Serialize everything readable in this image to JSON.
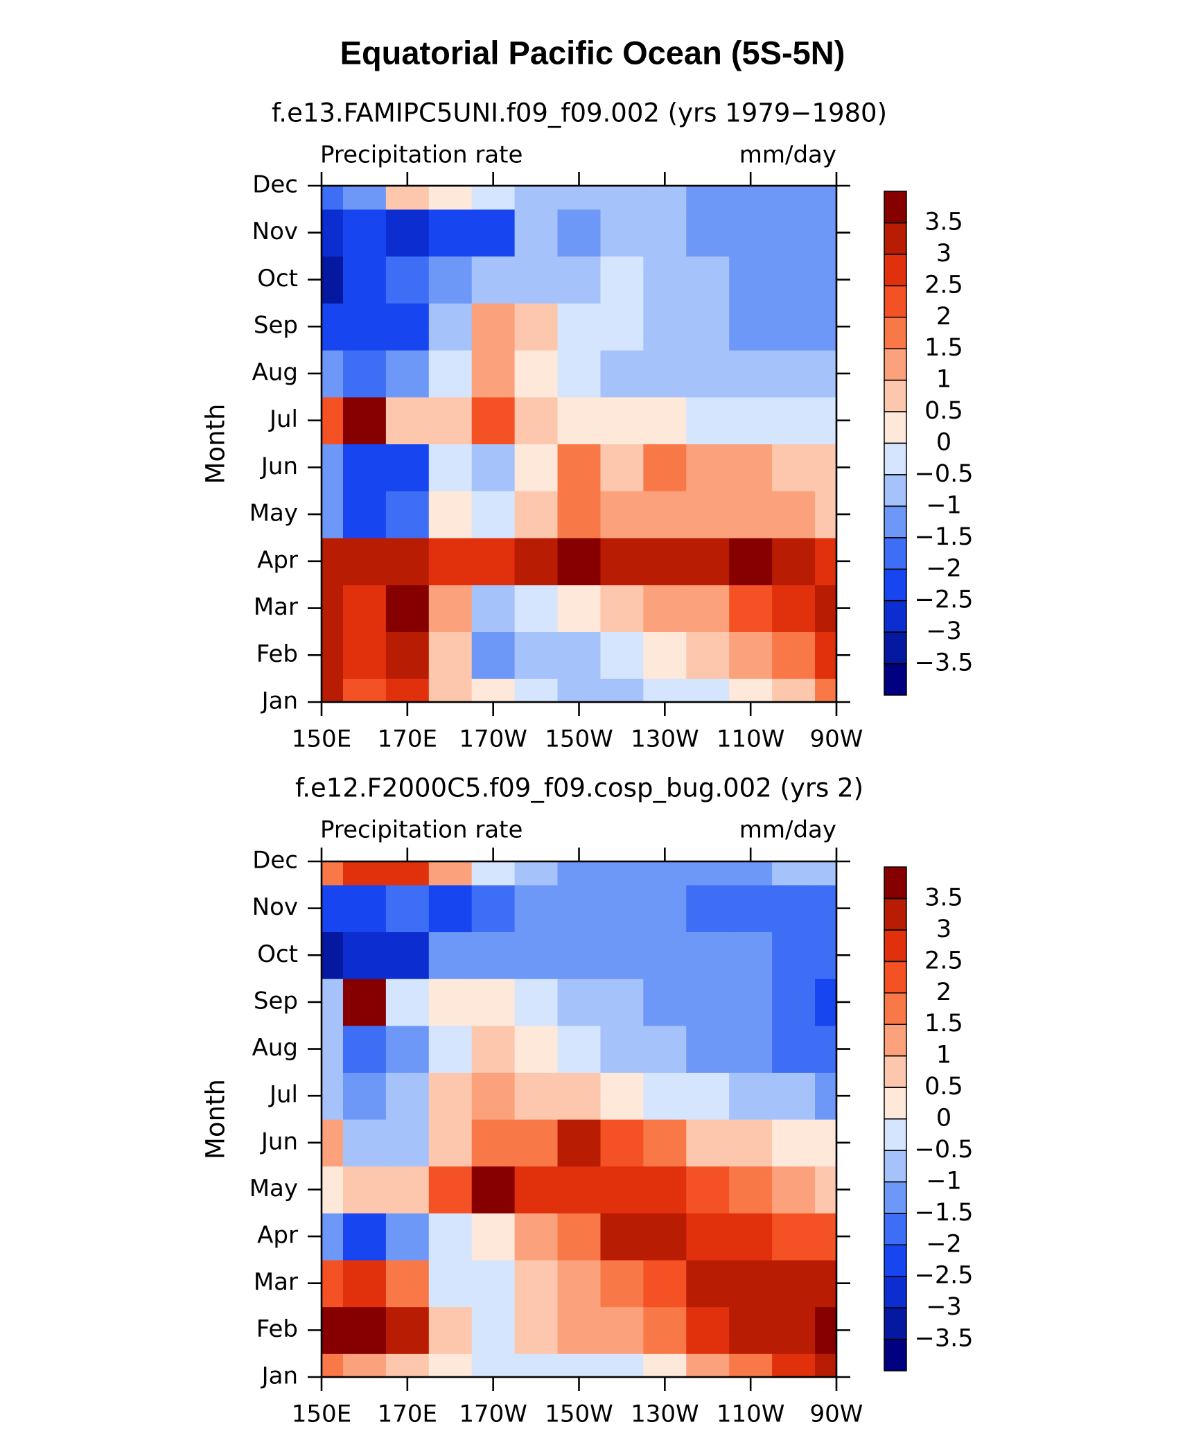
{
  "title": "Equatorial Pacific Ocean (5S-5N)",
  "chart_data": [
    {
      "type": "contour",
      "subtitle": "f.e13.FAMIPC5UNI.f09_f09.002 (yrs 1979−1980)",
      "left_label": "Precipitation rate",
      "right_label": "mm/day",
      "ylabel": "Month",
      "x": [
        150,
        160,
        170,
        180,
        190,
        200,
        210,
        220,
        230,
        240,
        250,
        260,
        270
      ],
      "xlim": [
        150,
        270
      ],
      "xticks": [
        {
          "value": 150,
          "label": "150E"
        },
        {
          "value": 170,
          "label": "170E"
        },
        {
          "value": 190,
          "label": "170W"
        },
        {
          "value": 210,
          "label": "150W"
        },
        {
          "value": 230,
          "label": "130W"
        },
        {
          "value": 250,
          "label": "110W"
        },
        {
          "value": 270,
          "label": "90W"
        }
      ],
      "y": [
        "Jan",
        "Feb",
        "Mar",
        "Apr",
        "May",
        "Jun",
        "Jul",
        "Aug",
        "Sep",
        "Oct",
        "Nov",
        "Dec"
      ],
      "values": [
        [
          3,
          2,
          2.5,
          0.8,
          0.3,
          -0.3,
          -0.6,
          -0.8,
          -0.3,
          -0.2,
          0.3,
          0.8,
          1.5
        ],
        [
          3.2,
          2.5,
          3.2,
          0.5,
          -1.2,
          -0.8,
          -0.7,
          -0.3,
          0.3,
          0.7,
          1.2,
          1.8,
          2.8
        ],
        [
          3,
          2.5,
          3.8,
          1,
          -0.7,
          -0.5,
          0.2,
          0.5,
          1,
          1.2,
          2,
          2.5,
          3
        ],
        [
          3.2,
          3,
          3.3,
          2.5,
          2.5,
          3,
          3.5,
          3,
          3,
          3,
          3.5,
          3,
          2.5
        ],
        [
          -1.5,
          -2.5,
          -2,
          0.3,
          -0.3,
          0.5,
          1.5,
          1.2,
          1.2,
          1,
          1.2,
          1,
          0.5
        ],
        [
          -1.5,
          -2.5,
          -2.2,
          -0.3,
          -0.7,
          0.3,
          1.5,
          0.8,
          1.8,
          1,
          1.2,
          0.8,
          0.5
        ],
        [
          2,
          3.8,
          0.5,
          0.5,
          2,
          0.5,
          0.3,
          0.3,
          0.1,
          -0.2,
          -0.2,
          -0.5,
          -0.5
        ],
        [
          -1.2,
          -2,
          -1.2,
          -0.5,
          1,
          0.3,
          -0.3,
          -0.7,
          -0.7,
          -0.6,
          -0.8,
          -1,
          -1
        ],
        [
          -2.2,
          -2.2,
          -2.2,
          -1,
          1.2,
          0.8,
          -0.3,
          -0.5,
          -0.7,
          -1,
          -1.2,
          -1.3,
          -1.3
        ],
        [
          -3.5,
          -2.5,
          -2,
          -1.2,
          -0.8,
          -0.7,
          -0.6,
          -0.5,
          -0.7,
          -1,
          -1.2,
          -1.3,
          -1.5
        ],
        [
          -3,
          -2.5,
          -3,
          -2.5,
          -2.5,
          -1,
          -1.2,
          -0.8,
          -0.8,
          -1.2,
          -1.3,
          -1.3,
          -1.5
        ],
        [
          -2,
          -1.5,
          0.5,
          0.3,
          -0.3,
          -0.7,
          -0.8,
          -0.8,
          -1,
          -1.2,
          -1.2,
          -1.2,
          -1.3
        ]
      ],
      "levels": [
        {
          "value": -3.5,
          "label": "−3.5"
        },
        {
          "value": -3,
          "label": "−3"
        },
        {
          "value": -2.5,
          "label": "−2.5"
        },
        {
          "value": -2,
          "label": "−2"
        },
        {
          "value": -1.5,
          "label": "−1.5"
        },
        {
          "value": -1,
          "label": "−1"
        },
        {
          "value": -0.5,
          "label": "−0.5"
        },
        0,
        0.5,
        1,
        1.5,
        2,
        2.5,
        3,
        3.5
      ],
      "colors": [
        "#000080",
        "#0519a0",
        "#0c2ed1",
        "#1745f0",
        "#3d6ef5",
        "#6e98f7",
        "#a5c2fa",
        "#d4e5fd",
        "#fde8da",
        "#fcc7ad",
        "#fba27c",
        "#f97848",
        "#f45224",
        "#e0300c",
        "#b81c03",
        "#860000"
      ]
    },
    {
      "type": "contour",
      "subtitle": "f.e12.F2000C5.f09_f09.cosp_bug.002 (yrs 2)",
      "left_label": "Precipitation rate",
      "right_label": "mm/day",
      "ylabel": "Month",
      "x": [
        150,
        160,
        170,
        180,
        190,
        200,
        210,
        220,
        230,
        240,
        250,
        260,
        270
      ],
      "xlim": [
        150,
        270
      ],
      "xticks": [
        {
          "value": 150,
          "label": "150E"
        },
        {
          "value": 170,
          "label": "170E"
        },
        {
          "value": 190,
          "label": "170W"
        },
        {
          "value": 210,
          "label": "150W"
        },
        {
          "value": 230,
          "label": "130W"
        },
        {
          "value": 250,
          "label": "110W"
        },
        {
          "value": 270,
          "label": "90W"
        }
      ],
      "y": [
        "Jan",
        "Feb",
        "Mar",
        "Apr",
        "May",
        "Jun",
        "Jul",
        "Aug",
        "Sep",
        "Oct",
        "Nov",
        "Dec"
      ],
      "values": [
        [
          1.5,
          1,
          0.5,
          0.2,
          -0.3,
          -0.3,
          -0.5,
          -0.3,
          0.3,
          1,
          1.5,
          2.5,
          3
        ],
        [
          3.5,
          3.5,
          3,
          0.5,
          -0.5,
          0.5,
          1,
          1.2,
          1.5,
          2.5,
          3,
          3.2,
          3.8
        ],
        [
          2,
          2.5,
          1.5,
          -0.5,
          -0.2,
          0.5,
          1,
          1.5,
          2,
          3,
          3,
          3.3,
          3.2
        ],
        [
          -1.5,
          -2.5,
          -1.5,
          -0.5,
          0.3,
          1,
          1.5,
          3,
          3,
          2.5,
          2.5,
          2.3,
          2
        ],
        [
          0.3,
          0.8,
          0.5,
          2,
          3.8,
          2.5,
          2.5,
          2.5,
          2.5,
          2,
          1.5,
          1,
          0.8
        ],
        [
          1,
          -1,
          -0.8,
          0.8,
          1.5,
          1.8,
          3,
          2,
          1.5,
          0.8,
          0.5,
          0.3,
          0.2
        ],
        [
          -0.8,
          -1.2,
          -0.8,
          0.5,
          1,
          0.8,
          0.5,
          0.3,
          -0.3,
          -0.5,
          -0.7,
          -1,
          -1.2
        ],
        [
          -0.7,
          -2,
          -1.2,
          -0.3,
          0.8,
          0.3,
          -0.3,
          -0.7,
          -1,
          -1.2,
          -1.5,
          -1.7,
          -1.8
        ],
        [
          -0.8,
          3.8,
          -0.3,
          0,
          0.2,
          -0.5,
          -0.8,
          -1,
          -1.3,
          -1.5,
          -1.3,
          -2,
          -2.2
        ],
        [
          -3.3,
          -3,
          -3,
          -1.2,
          -1.5,
          -1.2,
          -1.2,
          -1.2,
          -1.3,
          -1.5,
          -1.5,
          -2,
          -2
        ],
        [
          -2.5,
          -2.5,
          -2,
          -2.3,
          -2,
          -1.5,
          -1.5,
          -1.2,
          -1.5,
          -1.7,
          -2,
          -2,
          -1.8
        ],
        [
          1.5,
          2.5,
          2.5,
          1,
          -0.5,
          -1,
          -1.2,
          -1.3,
          -1.3,
          -1.2,
          -1.2,
          -1,
          -0.8
        ]
      ],
      "levels": [
        {
          "value": -3.5,
          "label": "−3.5"
        },
        {
          "value": -3,
          "label": "−3"
        },
        {
          "value": -2.5,
          "label": "−2.5"
        },
        {
          "value": -2,
          "label": "−2"
        },
        {
          "value": -1.5,
          "label": "−1.5"
        },
        {
          "value": -1,
          "label": "−1"
        },
        {
          "value": -0.5,
          "label": "−0.5"
        },
        0,
        0.5,
        1,
        1.5,
        2,
        2.5,
        3,
        3.5
      ],
      "colors": [
        "#000080",
        "#0519a0",
        "#0c2ed1",
        "#1745f0",
        "#3d6ef5",
        "#6e98f7",
        "#a5c2fa",
        "#d4e5fd",
        "#fde8da",
        "#fcc7ad",
        "#fba27c",
        "#f97848",
        "#f45224",
        "#e0300c",
        "#b81c03",
        "#860000"
      ]
    }
  ]
}
